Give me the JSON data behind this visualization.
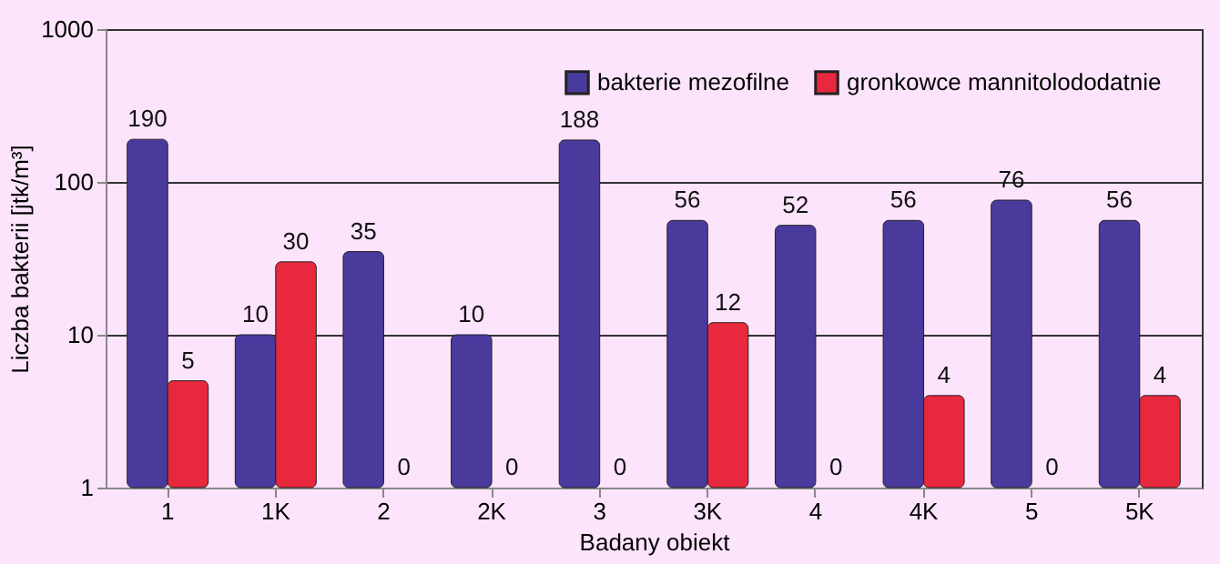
{
  "chart_data": {
    "type": "bar",
    "xlabel": "Badany obiekt",
    "ylabel": "Liczba bakterii [jtk/m³]",
    "categories": [
      "1",
      "1K",
      "2",
      "2K",
      "3",
      "3K",
      "4",
      "4K",
      "5",
      "5K"
    ],
    "series": [
      {
        "name": "bakterie mezofilne",
        "color": "#4a3a9c",
        "values": [
          190,
          10,
          35,
          10,
          188,
          56,
          52,
          56,
          76,
          56
        ],
        "value_labels": [
          "190",
          "10",
          "35",
          "10",
          "188",
          "56",
          "52",
          "56",
          "76",
          "56"
        ]
      },
      {
        "name": "gronkowce mannitolododatnie",
        "color": "#e8283c",
        "values": [
          5,
          30,
          null,
          null,
          null,
          12,
          null,
          4,
          null,
          4
        ],
        "value_labels": [
          "5",
          "30",
          "0",
          "0",
          "0",
          "12",
          "0",
          "4",
          "0",
          "4"
        ]
      }
    ],
    "log": true,
    "ylim": [
      1,
      1000
    ],
    "yticks": [
      1,
      10,
      100,
      1000
    ],
    "grid": "y",
    "legend": "top right"
  }
}
